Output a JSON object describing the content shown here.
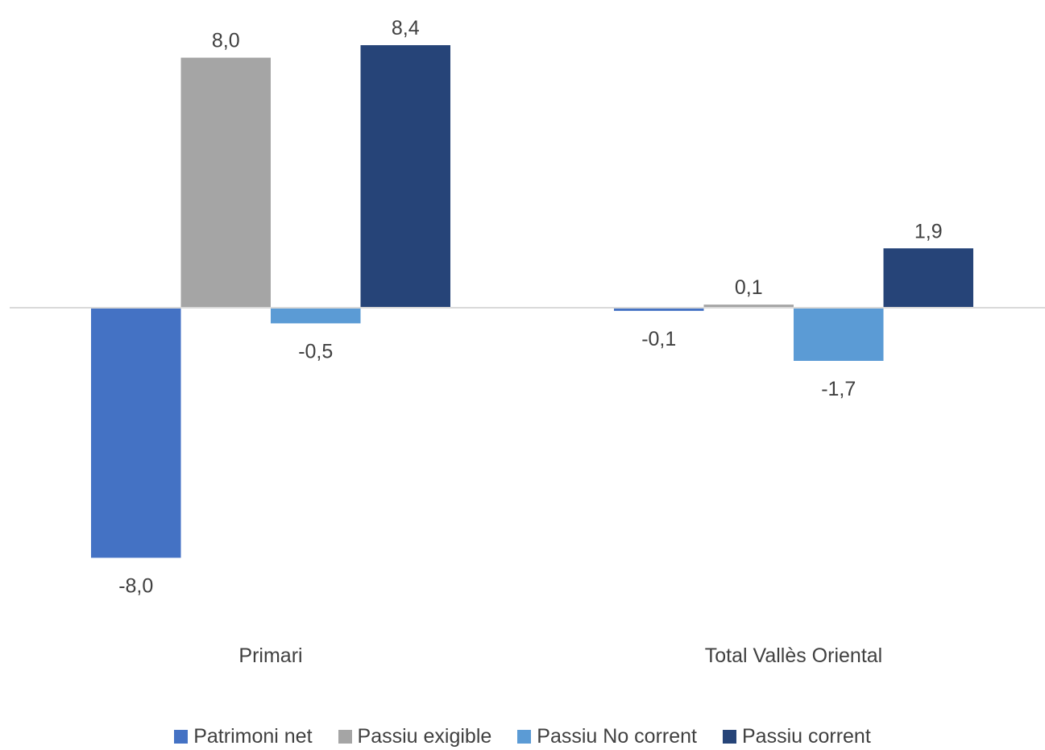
{
  "chart_data": {
    "type": "bar",
    "categories": [
      "Primari",
      "Total Vallès Oriental"
    ],
    "series": [
      {
        "name": "Patrimoni net",
        "color": "#4472C4",
        "values": [
          -8.0,
          -0.1
        ],
        "labels": [
          "-8,0",
          "-0,1"
        ]
      },
      {
        "name": "Passiu exigible",
        "color": "#A5A5A5",
        "values": [
          8.0,
          0.1
        ],
        "labels": [
          "8,0",
          "0,1"
        ]
      },
      {
        "name": "Passiu No corrent",
        "color": "#5B9BD5",
        "values": [
          -0.5,
          -1.7
        ],
        "labels": [
          "-0,5",
          "-1,7"
        ]
      },
      {
        "name": "Passiu corrent",
        "color": "#264478",
        "values": [
          8.4,
          1.9
        ],
        "labels": [
          "8,4",
          "1,9"
        ]
      }
    ],
    "ylim": [
      -8.0,
      8.5
    ],
    "grid": false,
    "legend_position": "bottom",
    "axis_color": "#D9D9D9",
    "label_color": "#404040"
  }
}
